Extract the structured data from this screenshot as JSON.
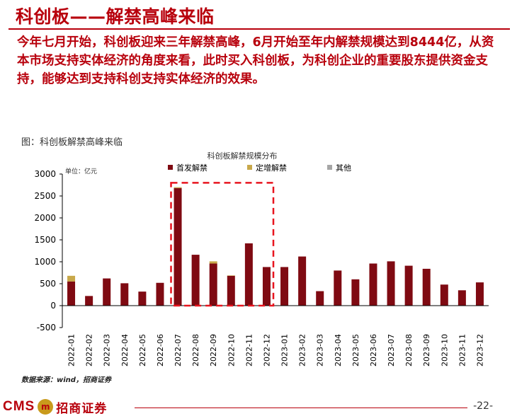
{
  "header": {
    "title": "科创板——解禁高峰来临"
  },
  "body": {
    "paragraph": "今年七月开始，科创板迎来三年解禁高峰，6月开始至年内解禁规模达到8444亿，从资本市场支持实体经济的角度来看，此时买入科创板，为科创企业的重要股东提供资金支持，能够达到支持科创支持实体经济的效果。"
  },
  "figure": {
    "caption": "图：科创板解禁高峰来临",
    "source": "数据来源：wind，招商证券"
  },
  "footer": {
    "logo_text": "CMS",
    "logo_emblem": "m",
    "company": "招商证券",
    "page": "-22-"
  },
  "colors": {
    "accent": "#b8000c",
    "series_first": "#7f0a12",
    "series_placement": "#c8a84a",
    "series_other": "#a6a6a6"
  },
  "chart_data": {
    "type": "bar",
    "stacked": true,
    "title": "科创板解禁规模分布",
    "unit_label": "单位：亿元",
    "categories": [
      "2022-01",
      "2022-02",
      "2022-03",
      "2022-04",
      "2022-05",
      "2022-06",
      "2022-07",
      "2022-08",
      "2022-09",
      "2022-10",
      "2022-11",
      "2022-12",
      "2023-01",
      "2023-02",
      "2023-03",
      "2023-04",
      "2023-05",
      "2023-06",
      "2023-07",
      "2023-08",
      "2023-09",
      "2023-10",
      "2023-11",
      "2023-12"
    ],
    "series": [
      {
        "name": "首发解禁",
        "values": [
          550,
          220,
          620,
          510,
          320,
          520,
          2680,
          1160,
          960,
          680,
          1420,
          880,
          880,
          1120,
          330,
          800,
          600,
          960,
          1010,
          910,
          840,
          480,
          350,
          530
        ]
      },
      {
        "name": "定增解禁",
        "values": [
          130,
          0,
          0,
          0,
          0,
          0,
          20,
          0,
          50,
          10,
          0,
          0,
          0,
          0,
          0,
          0,
          0,
          0,
          0,
          0,
          0,
          0,
          0,
          0
        ]
      },
      {
        "name": "其他",
        "values": [
          0,
          0,
          0,
          0,
          0,
          0,
          0,
          0,
          0,
          0,
          0,
          0,
          0,
          0,
          0,
          0,
          0,
          0,
          0,
          0,
          0,
          0,
          0,
          0
        ]
      }
    ],
    "ylim": [
      -500,
      3000
    ],
    "yticks": [
      -500,
      0,
      500,
      1000,
      1500,
      2000,
      2500,
      3000
    ],
    "legend": "top",
    "grid": false,
    "highlight": {
      "from": "2022-07",
      "to": "2022-12"
    }
  }
}
